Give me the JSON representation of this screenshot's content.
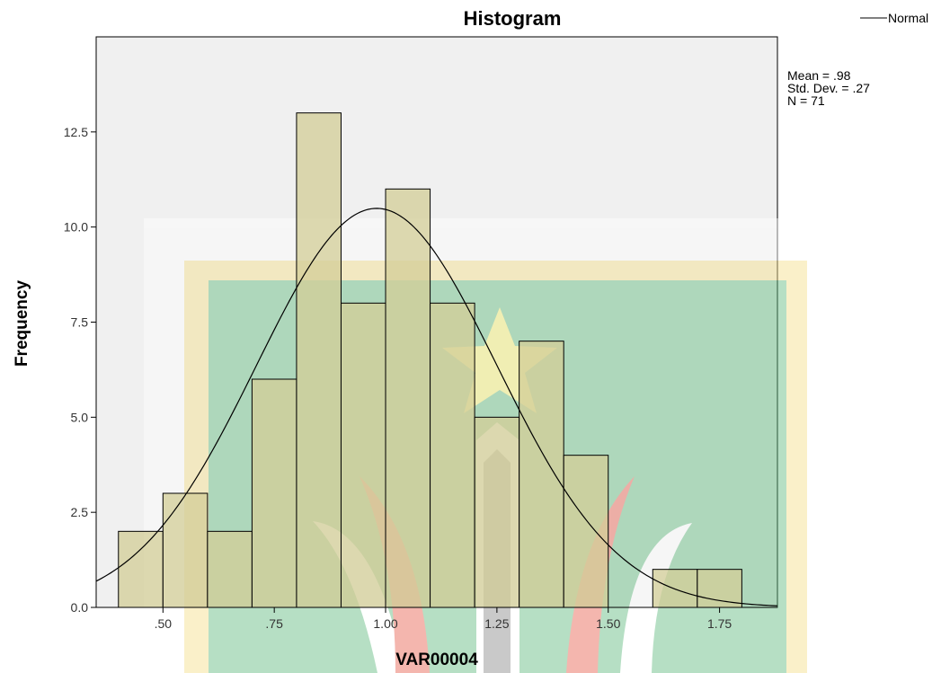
{
  "chart_data": {
    "type": "bar",
    "title": "Histogram",
    "xlabel": "VAR00004",
    "ylabel": "Frequency",
    "bins": [
      {
        "x0": 0.4,
        "x1": 0.5,
        "count": 2
      },
      {
        "x0": 0.5,
        "x1": 0.6,
        "count": 3
      },
      {
        "x0": 0.6,
        "x1": 0.7,
        "count": 2
      },
      {
        "x0": 0.7,
        "x1": 0.8,
        "count": 6
      },
      {
        "x0": 0.8,
        "x1": 0.9,
        "count": 13
      },
      {
        "x0": 0.9,
        "x1": 1.0,
        "count": 8
      },
      {
        "x0": 1.0,
        "x1": 1.1,
        "count": 11
      },
      {
        "x0": 1.1,
        "x1": 1.2,
        "count": 8
      },
      {
        "x0": 1.2,
        "x1": 1.3,
        "count": 5
      },
      {
        "x0": 1.3,
        "x1": 1.4,
        "count": 7
      },
      {
        "x0": 1.4,
        "x1": 1.5,
        "count": 4
      },
      {
        "x0": 1.6,
        "x1": 1.7,
        "count": 1
      },
      {
        "x0": 1.7,
        "x1": 1.8,
        "count": 1
      }
    ],
    "xlim": [
      0.35,
      1.88
    ],
    "ylim": [
      0,
      15
    ],
    "xticks": [
      {
        "value": 0.5,
        "label": ".50"
      },
      {
        "value": 0.75,
        "label": ".75"
      },
      {
        "value": 1.0,
        "label": "1.00"
      },
      {
        "value": 1.25,
        "label": "1.25"
      },
      {
        "value": 1.5,
        "label": "1.50"
      },
      {
        "value": 1.75,
        "label": "1.75"
      }
    ],
    "yticks": [
      {
        "value": 0,
        "label": "0.0"
      },
      {
        "value": 2.5,
        "label": "2.5"
      },
      {
        "value": 5,
        "label": "5.0"
      },
      {
        "value": 7.5,
        "label": "7.5"
      },
      {
        "value": 10,
        "label": "10.0"
      },
      {
        "value": 12.5,
        "label": "12.5"
      }
    ],
    "normal_curve": {
      "name": "Normal",
      "mean": 0.98,
      "sd": 0.27,
      "n": 71,
      "bin_width": 0.1
    },
    "stats": {
      "mean": "Mean = .98",
      "sd": "Std. Dev. = .27",
      "n": "N = 71"
    },
    "legend": {
      "label": "Normal",
      "placement": "top-right"
    },
    "colors": {
      "plot_bg": "#f0f0f0",
      "bar_fill": "#d3ce97",
      "bar_stroke": "#000000",
      "curve": "#000000"
    },
    "grid": false
  }
}
